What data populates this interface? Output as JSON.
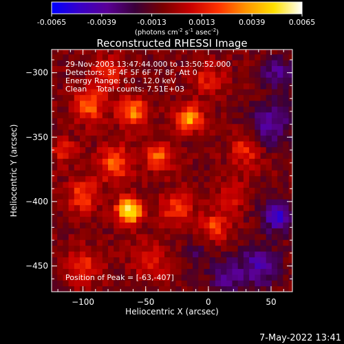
{
  "chart_data": {
    "type": "heatmap",
    "title": "Reconstructed RHESSI Image",
    "xlabel": "Heliocentric X (arcsec)",
    "ylabel": "Heliocentric Y (arcsec)",
    "xlim": [
      -125,
      67
    ],
    "ylim": [
      -470,
      -282
    ],
    "x_ticks": [
      -100,
      -50,
      0,
      50
    ],
    "y_ticks": [
      -300,
      -350,
      -400,
      -450
    ],
    "colorbar": {
      "range": [
        -0.0065,
        0.0065
      ],
      "ticks": [
        "-0.0065",
        "-0.0039",
        "-0.0013",
        "0.0013",
        "0.0039",
        "0.0065"
      ],
      "label_parts": [
        "(photons cm",
        "-2",
        " s",
        "-1",
        " asec",
        "-2",
        ")"
      ],
      "colors": [
        "#0000ff",
        "#3800c8",
        "#5a0096",
        "#3a003a",
        "#7a0000",
        "#c80000",
        "#ff3200",
        "#ff9600",
        "#ffe000",
        "#ffffff"
      ]
    },
    "annotations": {
      "time": "29-Nov-2003 13:47:44.000 to 13:50:52.000",
      "detectors": "Detectors: 3F 4F 5F 6F 7F 8F, Att 0",
      "energy": "Energy Range: 6.0 - 12.0 keV",
      "clean": "Clean    Total counts: 7.51E+03",
      "peak": "Position of Peak = [-63,-407]"
    },
    "blobs": [
      {
        "x": -63,
        "y": -407,
        "amp": 0.007,
        "r": 7
      },
      {
        "x": -15,
        "y": -335,
        "amp": 0.005,
        "r": 7
      },
      {
        "x": -60,
        "y": -330,
        "amp": 0.0042,
        "r": 8
      },
      {
        "x": -95,
        "y": -325,
        "amp": 0.0034,
        "r": 9
      },
      {
        "x": -40,
        "y": -365,
        "amp": 0.0034,
        "r": 8
      },
      {
        "x": -75,
        "y": -370,
        "amp": 0.0036,
        "r": 9
      },
      {
        "x": -100,
        "y": -395,
        "amp": 0.003,
        "r": 9
      },
      {
        "x": -25,
        "y": -405,
        "amp": 0.0028,
        "r": 9
      },
      {
        "x": 5,
        "y": -420,
        "amp": 0.003,
        "r": 8
      },
      {
        "x": -100,
        "y": -450,
        "amp": 0.0028,
        "r": 9
      },
      {
        "x": -45,
        "y": -445,
        "amp": 0.0022,
        "r": 10
      },
      {
        "x": 30,
        "y": -360,
        "amp": 0.0026,
        "r": 9
      },
      {
        "x": 20,
        "y": -395,
        "amp": 0.002,
        "r": 8
      },
      {
        "x": -80,
        "y": -300,
        "amp": 0.0025,
        "r": 9
      },
      {
        "x": 0,
        "y": -305,
        "amp": 0.0022,
        "r": 9
      },
      {
        "x": -115,
        "y": -360,
        "amp": 0.0022,
        "r": 7
      },
      {
        "x": 50,
        "y": -340,
        "amp": -0.003,
        "r": 12
      },
      {
        "x": 55,
        "y": -410,
        "amp": -0.0042,
        "r": 9
      },
      {
        "x": 40,
        "y": -450,
        "amp": -0.003,
        "r": 12
      },
      {
        "x": 55,
        "y": -300,
        "amp": -0.0026,
        "r": 10
      },
      {
        "x": 15,
        "y": -460,
        "amp": -0.0022,
        "r": 10
      },
      {
        "x": -10,
        "y": -440,
        "amp": -0.0014,
        "r": 9
      }
    ]
  },
  "timestamp": "7-May-2022 13:41"
}
